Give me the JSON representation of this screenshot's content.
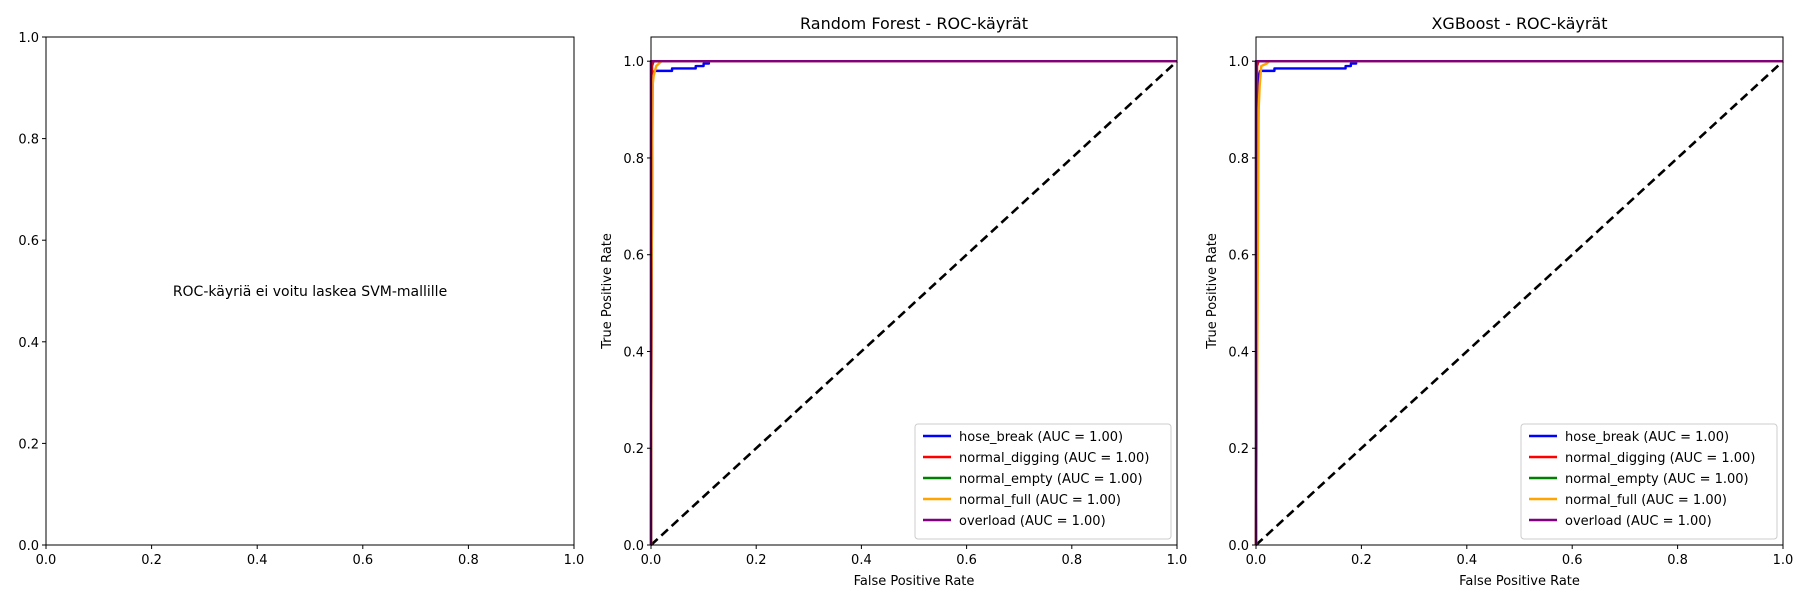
{
  "chart_data": [
    {
      "type": "text",
      "title": "",
      "message": "ROC-käyriä ei voitu laskea SVM-mallille",
      "xlabel": "",
      "ylabel": "",
      "xlim": [
        0,
        1
      ],
      "ylim": [
        0,
        1
      ],
      "xticks": [
        "0.0",
        "0.2",
        "0.4",
        "0.6",
        "0.8",
        "1.0"
      ],
      "yticks": [
        "0.0",
        "0.2",
        "0.4",
        "0.6",
        "0.8",
        "1.0"
      ],
      "grid": false
    },
    {
      "type": "line",
      "title": "Random Forest - ROC-käyrät",
      "xlabel": "False Positive Rate",
      "ylabel": "True Positive Rate",
      "xlim": [
        0,
        1
      ],
      "ylim": [
        0,
        1.05
      ],
      "xticks": [
        "0.0",
        "0.2",
        "0.4",
        "0.6",
        "0.8",
        "1.0"
      ],
      "yticks": [
        "0.0",
        "0.2",
        "0.4",
        "0.6",
        "0.8",
        "1.0"
      ],
      "grid": false,
      "legend_position": "lower-right",
      "series": [
        {
          "name": "hose_break (AUC = 1.00)",
          "color": "#0000ff",
          "points": [
            [
              0,
              0
            ],
            [
              0.001,
              0.5
            ],
            [
              0.003,
              0.97
            ],
            [
              0.007,
              0.98
            ],
            [
              0.04,
              0.98
            ],
            [
              0.04,
              0.985
            ],
            [
              0.085,
              0.985
            ],
            [
              0.085,
              0.99
            ],
            [
              0.1,
              0.99
            ],
            [
              0.1,
              0.995
            ],
            [
              0.11,
              0.995
            ],
            [
              0.11,
              1.0
            ],
            [
              1,
              1
            ]
          ]
        },
        {
          "name": "normal_digging (AUC = 1.00)",
          "color": "#ff0000",
          "points": [
            [
              0,
              0
            ],
            [
              0.002,
              0.99
            ],
            [
              0.005,
              1.0
            ],
            [
              1,
              1
            ]
          ]
        },
        {
          "name": "normal_empty (AUC = 1.00)",
          "color": "#008000",
          "points": [
            [
              0,
              0
            ],
            [
              0,
              1.0
            ],
            [
              1,
              1
            ]
          ]
        },
        {
          "name": "normal_full (AUC = 1.00)",
          "color": "#ffa500",
          "points": [
            [
              0,
              0
            ],
            [
              0.001,
              0.5
            ],
            [
              0.003,
              0.95
            ],
            [
              0.005,
              0.97
            ],
            [
              0.01,
              0.99
            ],
            [
              0.015,
              0.995
            ],
            [
              0.02,
              1.0
            ],
            [
              1,
              1
            ]
          ]
        },
        {
          "name": "overload (AUC = 1.00)",
          "color": "#800080",
          "points": [
            [
              0,
              0
            ],
            [
              0,
              1.0
            ],
            [
              1,
              1
            ]
          ]
        }
      ],
      "reference_line": {
        "points": [
          [
            0,
            0
          ],
          [
            1,
            1
          ]
        ],
        "color": "#000000",
        "style": "dashed"
      }
    },
    {
      "type": "line",
      "title": "XGBoost - ROC-käyrät",
      "xlabel": "False Positive Rate",
      "ylabel": "True Positive Rate",
      "xlim": [
        0,
        1
      ],
      "ylim": [
        0,
        1.05
      ],
      "xticks": [
        "0.0",
        "0.2",
        "0.4",
        "0.6",
        "0.8",
        "1.0"
      ],
      "yticks": [
        "0.0",
        "0.2",
        "0.4",
        "0.6",
        "0.8",
        "1.0"
      ],
      "grid": false,
      "legend_position": "lower-right",
      "series": [
        {
          "name": "hose_break (AUC = 1.00)",
          "color": "#0000ff",
          "points": [
            [
              0,
              0
            ],
            [
              0.002,
              0.5
            ],
            [
              0.005,
              0.97
            ],
            [
              0.008,
              0.98
            ],
            [
              0.035,
              0.98
            ],
            [
              0.035,
              0.985
            ],
            [
              0.17,
              0.985
            ],
            [
              0.17,
              0.99
            ],
            [
              0.18,
              0.99
            ],
            [
              0.18,
              0.995
            ],
            [
              0.19,
              0.995
            ],
            [
              0.19,
              1.0
            ],
            [
              1,
              1
            ]
          ]
        },
        {
          "name": "normal_digging (AUC = 1.00)",
          "color": "#ff0000",
          "points": [
            [
              0,
              0
            ],
            [
              0.002,
              0.99
            ],
            [
              0.005,
              1.0
            ],
            [
              1,
              1
            ]
          ]
        },
        {
          "name": "normal_empty (AUC = 1.00)",
          "color": "#008000",
          "points": [
            [
              0,
              0
            ],
            [
              0,
              1.0
            ],
            [
              1,
              1
            ]
          ]
        },
        {
          "name": "normal_full (AUC = 1.00)",
          "color": "#ffa500",
          "points": [
            [
              0,
              0
            ],
            [
              0.003,
              0.5
            ],
            [
              0.005,
              0.9
            ],
            [
              0.007,
              0.95
            ],
            [
              0.01,
              0.99
            ],
            [
              0.02,
              0.995
            ],
            [
              0.025,
              1.0
            ],
            [
              1,
              1
            ]
          ]
        },
        {
          "name": "overload (AUC = 1.00)",
          "color": "#800080",
          "points": [
            [
              0,
              0
            ],
            [
              0,
              1.0
            ],
            [
              1,
              1
            ]
          ]
        }
      ],
      "reference_line": {
        "points": [
          [
            0,
            0
          ],
          [
            1,
            1
          ]
        ],
        "color": "#000000",
        "style": "dashed"
      }
    }
  ]
}
